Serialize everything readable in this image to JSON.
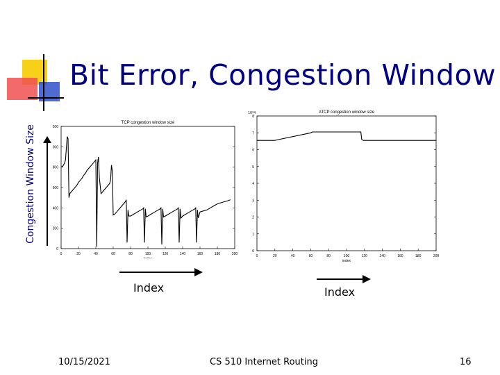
{
  "slide": {
    "title": "Bit Error, Congestion Window",
    "y_axis_label": "Congestion Window Size",
    "x_axis_label_left": "Index",
    "x_axis_label_right": "Index",
    "footer_date": "10/15/2021",
    "footer_course": "CS 510 Internet Routing",
    "footer_page": "16"
  },
  "colors": {
    "title": "#000080",
    "accent_yellow": "#f7d117",
    "accent_red": "#f05050",
    "accent_blue": "#3050c8",
    "plot_line": "#000000"
  },
  "chart_data": [
    {
      "type": "line",
      "title": "TCP congestion window size",
      "xlabel": "index",
      "ylabel": "",
      "xlim": [
        0,
        200
      ],
      "ylim": [
        0,
        1200
      ],
      "xticks": [
        "0",
        "20",
        "40",
        "60",
        "80",
        "100",
        "120",
        "140",
        "160",
        "180",
        "200"
      ],
      "yticks": [
        "0",
        "200",
        "400",
        "600",
        "800",
        "1000",
        "1200"
      ],
      "series": [
        {
          "x": [
            0,
            2,
            4,
            5,
            7,
            8,
            9,
            10,
            12,
            14,
            16,
            18,
            20,
            22,
            24,
            26,
            28,
            30,
            32,
            34,
            36,
            38,
            40,
            41,
            42,
            43,
            44,
            46,
            48,
            50,
            52,
            54,
            56,
            57,
            58,
            59,
            60,
            62,
            64,
            66,
            68,
            70,
            72,
            74,
            75,
            76,
            77,
            78,
            80,
            82,
            84,
            86,
            88,
            90,
            92,
            94,
            95,
            96,
            97,
            98,
            100,
            102,
            104,
            106,
            108,
            110,
            112,
            114,
            115,
            116,
            117,
            118,
            120,
            122,
            124,
            126,
            128,
            130,
            132,
            134,
            135,
            136,
            137,
            138,
            140,
            142,
            144,
            146,
            148,
            150,
            152,
            154,
            155,
            156,
            157,
            158,
            160,
            164,
            168,
            172,
            176,
            180,
            184,
            188,
            192,
            195
          ],
          "values": [
            800,
            810,
            840,
            870,
            1100,
            1080,
            500,
            540,
            560,
            580,
            600,
            620,
            650,
            670,
            690,
            720,
            740,
            770,
            790,
            810,
            830,
            850,
            870,
            20,
            840,
            900,
            700,
            540,
            560,
            580,
            600,
            620,
            640,
            680,
            820,
            760,
            330,
            340,
            360,
            380,
            400,
            420,
            440,
            460,
            480,
            60,
            380,
            320,
            320,
            330,
            340,
            350,
            360,
            370,
            380,
            390,
            400,
            60,
            390,
            310,
            320,
            330,
            340,
            350,
            360,
            370,
            380,
            390,
            400,
            40,
            390,
            310,
            320,
            330,
            340,
            350,
            360,
            370,
            380,
            390,
            400,
            60,
            390,
            300,
            320,
            330,
            340,
            350,
            360,
            370,
            380,
            390,
            400,
            60,
            380,
            300,
            360,
            370,
            380,
            400,
            420,
            440,
            450,
            460,
            470,
            480
          ]
        }
      ]
    },
    {
      "type": "line",
      "title": "ATCP congestion window size",
      "xlabel": "index",
      "ylabel": "x 10^4",
      "xlim": [
        0,
        200
      ],
      "ylim": [
        0,
        8
      ],
      "xticks": [
        "0",
        "20",
        "40",
        "60",
        "80",
        "100",
        "120",
        "140",
        "160",
        "180",
        "200"
      ],
      "yticks": [
        "0",
        "1",
        "2",
        "3",
        "4",
        "5",
        "6",
        "7",
        "8"
      ],
      "series": [
        {
          "x": [
            0,
            20,
            24,
            60,
            62,
            116,
            117,
            119,
            150,
            195,
            200
          ],
          "values": [
            6.55,
            6.55,
            6.6,
            7.0,
            7.05,
            7.05,
            6.6,
            6.55,
            6.55,
            6.55,
            6.55
          ]
        }
      ]
    }
  ]
}
